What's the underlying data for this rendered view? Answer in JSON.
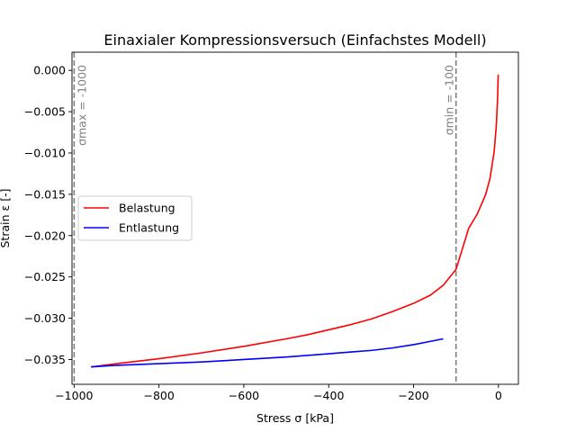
{
  "chart_data": {
    "type": "line",
    "title": "Einaxialer Kompressionsversuch (Einfachstes Modell)",
    "xlabel": "Stress σ [kPa]",
    "ylabel": "Strain ε [-]",
    "xlim": [
      -1005,
      47
    ],
    "ylim": [
      -0.038,
      0.0022
    ],
    "xticks": [
      -1000,
      -800,
      -600,
      -400,
      -200,
      0
    ],
    "xtick_labels": [
      "−1000",
      "−800",
      "−600",
      "−400",
      "−200",
      "0"
    ],
    "yticks": [
      0.0,
      -0.005,
      -0.01,
      -0.015,
      -0.02,
      -0.025,
      -0.03,
      -0.035
    ],
    "ytick_labels": [
      "0.000",
      "−0.005",
      "−0.010",
      "−0.015",
      "−0.020",
      "−0.025",
      "−0.030",
      "−0.035"
    ],
    "grid": false,
    "legend": "center-left",
    "reference_lines": [
      {
        "x": -1000,
        "label": "σmax = -1000",
        "color": "#808080",
        "style": "dashed"
      },
      {
        "x": -100,
        "label": "σmin = -100",
        "color": "#808080",
        "style": "dashed"
      }
    ],
    "series": [
      {
        "name": "Belastung",
        "color": "#ff0000",
        "x": [
          -0.5,
          -2,
          -5,
          -10,
          -20,
          -30,
          -50,
          -70,
          -100,
          -130,
          -160,
          -200,
          -250,
          -300,
          -350,
          -400,
          -450,
          -500,
          -600,
          -700,
          -800,
          -900,
          -960
        ],
        "y": [
          -0.0005,
          -0.0033,
          -0.0066,
          -0.0098,
          -0.0131,
          -0.015,
          -0.0174,
          -0.0191,
          -0.0241,
          -0.026,
          -0.0272,
          -0.0282,
          -0.0292,
          -0.0301,
          -0.0308,
          -0.0314,
          -0.032,
          -0.0325,
          -0.0334,
          -0.0342,
          -0.0349,
          -0.0355,
          -0.0359
        ]
      },
      {
        "name": "Entlastung",
        "color": "#0000ff",
        "x": [
          -130,
          -160,
          -200,
          -250,
          -300,
          -350,
          -400,
          -500,
          -600,
          -700,
          -800,
          -900,
          -960
        ],
        "y": [
          -0.0325,
          -0.0328,
          -0.0332,
          -0.0336,
          -0.0339,
          -0.0341,
          -0.0343,
          -0.0347,
          -0.035,
          -0.0353,
          -0.0355,
          -0.0357,
          -0.0359
        ]
      }
    ]
  }
}
